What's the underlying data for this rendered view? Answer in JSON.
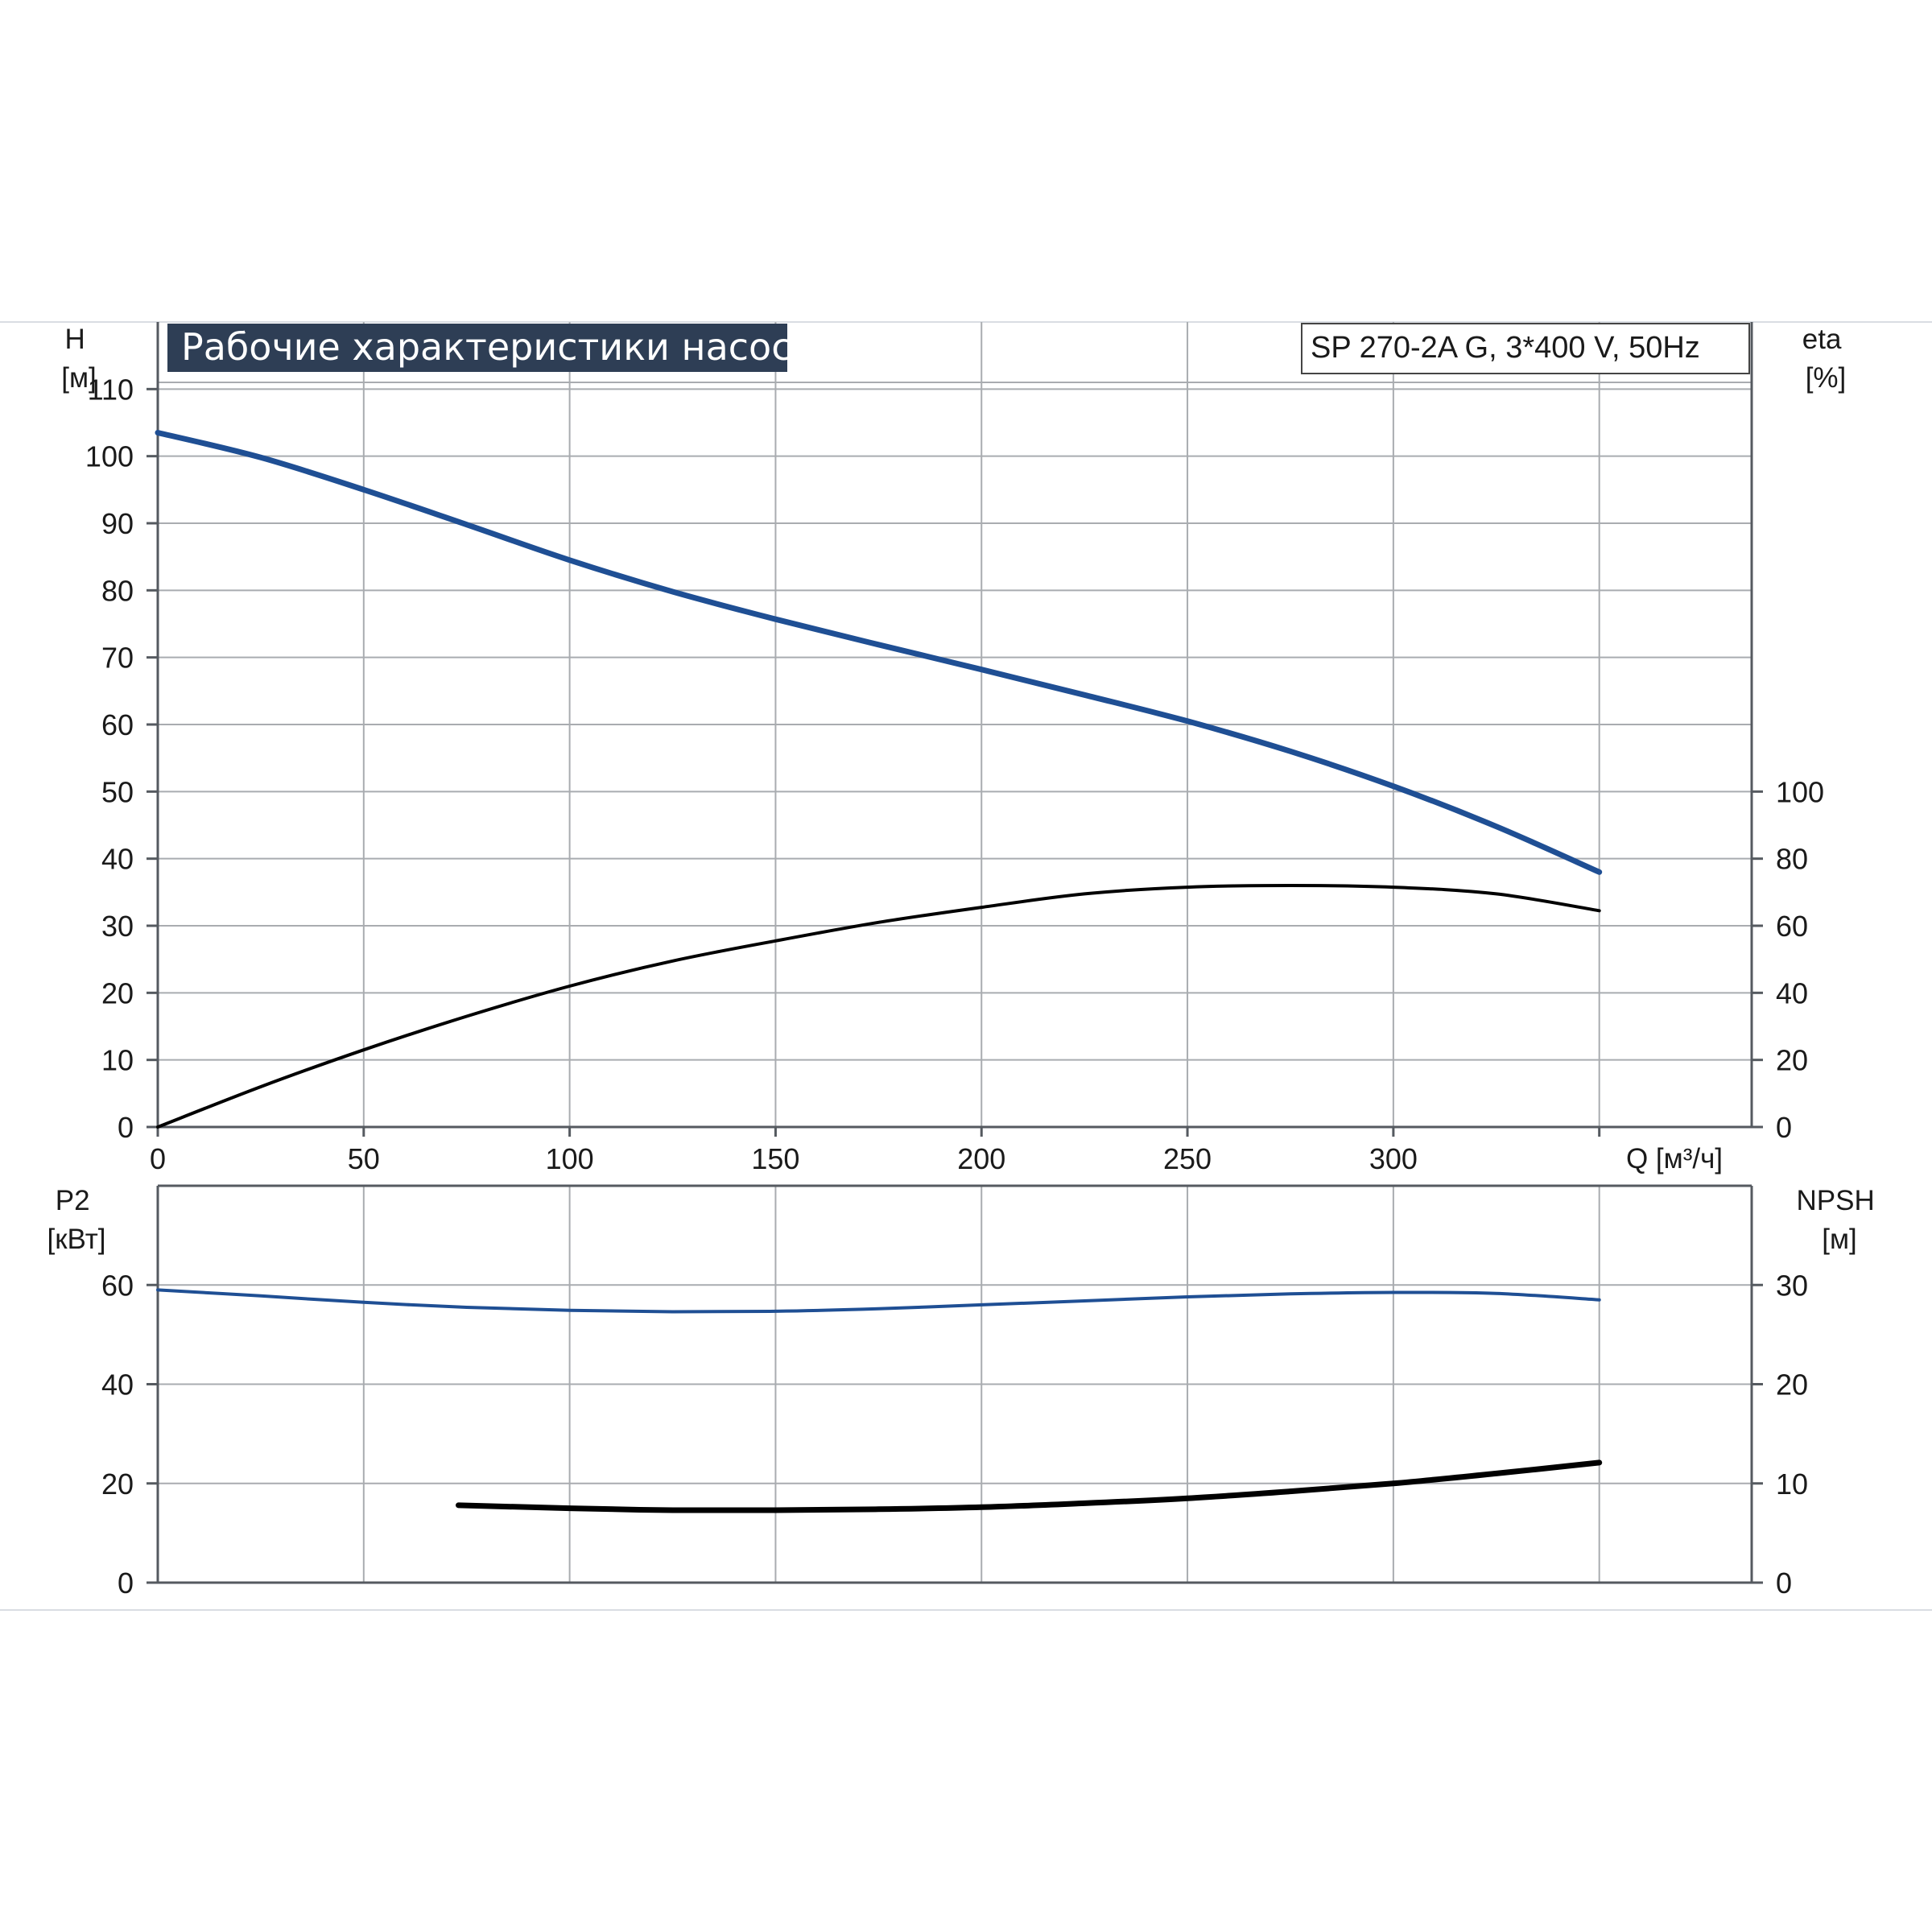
{
  "title": "Рабочие характеристики насоса",
  "model": "SP 270-2A G, 3*400 V, 50Hz",
  "colors": {
    "blue_curve": "#1f4f94",
    "black_curve": "#000000",
    "title_bg": "#2e3e55"
  },
  "chart_data": [
    {
      "type": "line",
      "panel": "performance",
      "xlabel": "Q [м³/ч]",
      "ylabel_left": "H\n[м]",
      "ylabel_right": "eta\n[%]",
      "x_ticks": [
        "0",
        "50",
        "100",
        "150",
        "200",
        "250",
        "300"
      ],
      "y_left_ticks": [
        "0",
        "10",
        "20",
        "30",
        "40",
        "50",
        "60",
        "70",
        "80",
        "90",
        "100",
        "110"
      ],
      "y_right_ticks": [
        "0",
        "20",
        "40",
        "60",
        "80",
        "100"
      ],
      "xlim": [
        0,
        387
      ],
      "ylim_left": [
        0,
        120
      ],
      "ylim_right": [
        0,
        240
      ],
      "grid": true,
      "series": [
        {
          "id": "H",
          "axis": "left",
          "color": "#1f4f94",
          "x": [
            0,
            25,
            50,
            75,
            100,
            125,
            150,
            175,
            200,
            225,
            250,
            275,
            300,
            325,
            350
          ],
          "y": [
            103.5,
            99.8,
            95,
            89.8,
            84.5,
            79.8,
            75.7,
            71.9,
            68.2,
            64.4,
            60.5,
            56,
            50.8,
            44.8,
            38
          ]
        },
        {
          "id": "eta",
          "axis": "right",
          "color": "#000000",
          "x": [
            0,
            25,
            50,
            75,
            100,
            125,
            150,
            175,
            200,
            225,
            250,
            275,
            300,
            325,
            350
          ],
          "y": [
            0,
            12,
            23,
            33,
            42,
            49.5,
            55.5,
            61,
            65.5,
            69.5,
            71.5,
            72,
            71.5,
            69.5,
            64.5
          ]
        }
      ]
    },
    {
      "type": "line",
      "panel": "power-npsh",
      "ylabel_left": "P2\n[кВт]",
      "ylabel_right": "NPSH\n[м]",
      "x_ticks": [],
      "y_left_ticks": [
        "0",
        "20",
        "40",
        "60"
      ],
      "y_right_ticks": [
        "0",
        "10",
        "20",
        "30"
      ],
      "xlim": [
        0,
        387
      ],
      "ylim_left": [
        0,
        80
      ],
      "ylim_right": [
        0,
        40
      ],
      "grid": true,
      "series": [
        {
          "id": "P2",
          "axis": "left",
          "color": "#1f4f94",
          "x": [
            0,
            25,
            50,
            75,
            100,
            125,
            150,
            175,
            200,
            225,
            250,
            275,
            300,
            325,
            350
          ],
          "y": [
            59,
            57.8,
            56.5,
            55.5,
            54.9,
            54.6,
            54.7,
            55.2,
            56,
            56.8,
            57.6,
            58.2,
            58.5,
            58.3,
            57
          ]
        },
        {
          "id": "NPSH",
          "axis": "right",
          "color": "#000000",
          "x": [
            73,
            100,
            125,
            150,
            175,
            200,
            225,
            250,
            275,
            300,
            325,
            350
          ],
          "y": [
            7.8,
            7.5,
            7.3,
            7.3,
            7.4,
            7.6,
            8,
            8.5,
            9.2,
            10,
            11,
            12.1
          ]
        }
      ]
    }
  ]
}
